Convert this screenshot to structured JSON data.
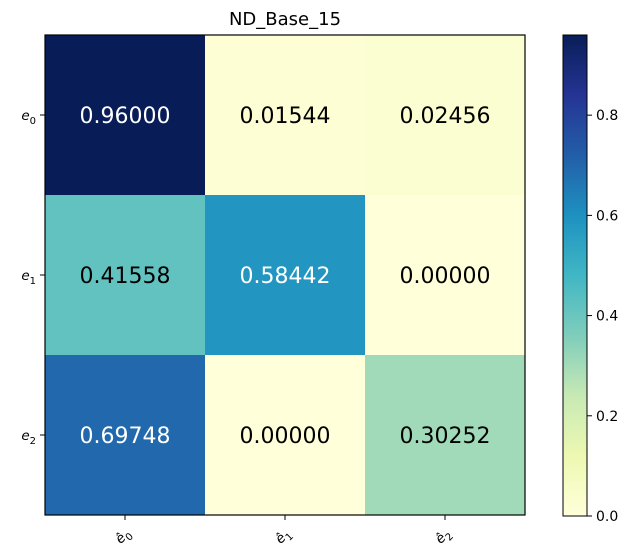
{
  "chart_data": {
    "type": "heatmap",
    "title": "ND_Base_15",
    "row_labels": [
      {
        "base": "e",
        "sub": "0"
      },
      {
        "base": "e",
        "sub": "1"
      },
      {
        "base": "e",
        "sub": "2"
      }
    ],
    "col_labels": [
      {
        "base": "ê",
        "sub": "0"
      },
      {
        "base": "ê",
        "sub": "1"
      },
      {
        "base": "ê",
        "sub": "2"
      }
    ],
    "values": [
      [
        0.96,
        0.01544,
        0.02456
      ],
      [
        0.41558,
        0.58442,
        0.0
      ],
      [
        0.69748,
        0.0,
        0.30252
      ]
    ],
    "value_labels": [
      [
        "0.96000",
        "0.01544",
        "0.02456"
      ],
      [
        "0.41558",
        "0.58442",
        "0.00000"
      ],
      [
        "0.69748",
        "0.00000",
        "0.30252"
      ]
    ],
    "colormap": "YlGnBu",
    "vmin": 0.0,
    "vmax": 0.96,
    "colorbar_ticks": [
      0.0,
      0.2,
      0.4,
      0.6,
      0.8
    ],
    "colorbar_tick_labels": [
      "0.0",
      "0.2",
      "0.4",
      "0.6",
      "0.8"
    ],
    "xlabel": "",
    "ylabel": ""
  }
}
